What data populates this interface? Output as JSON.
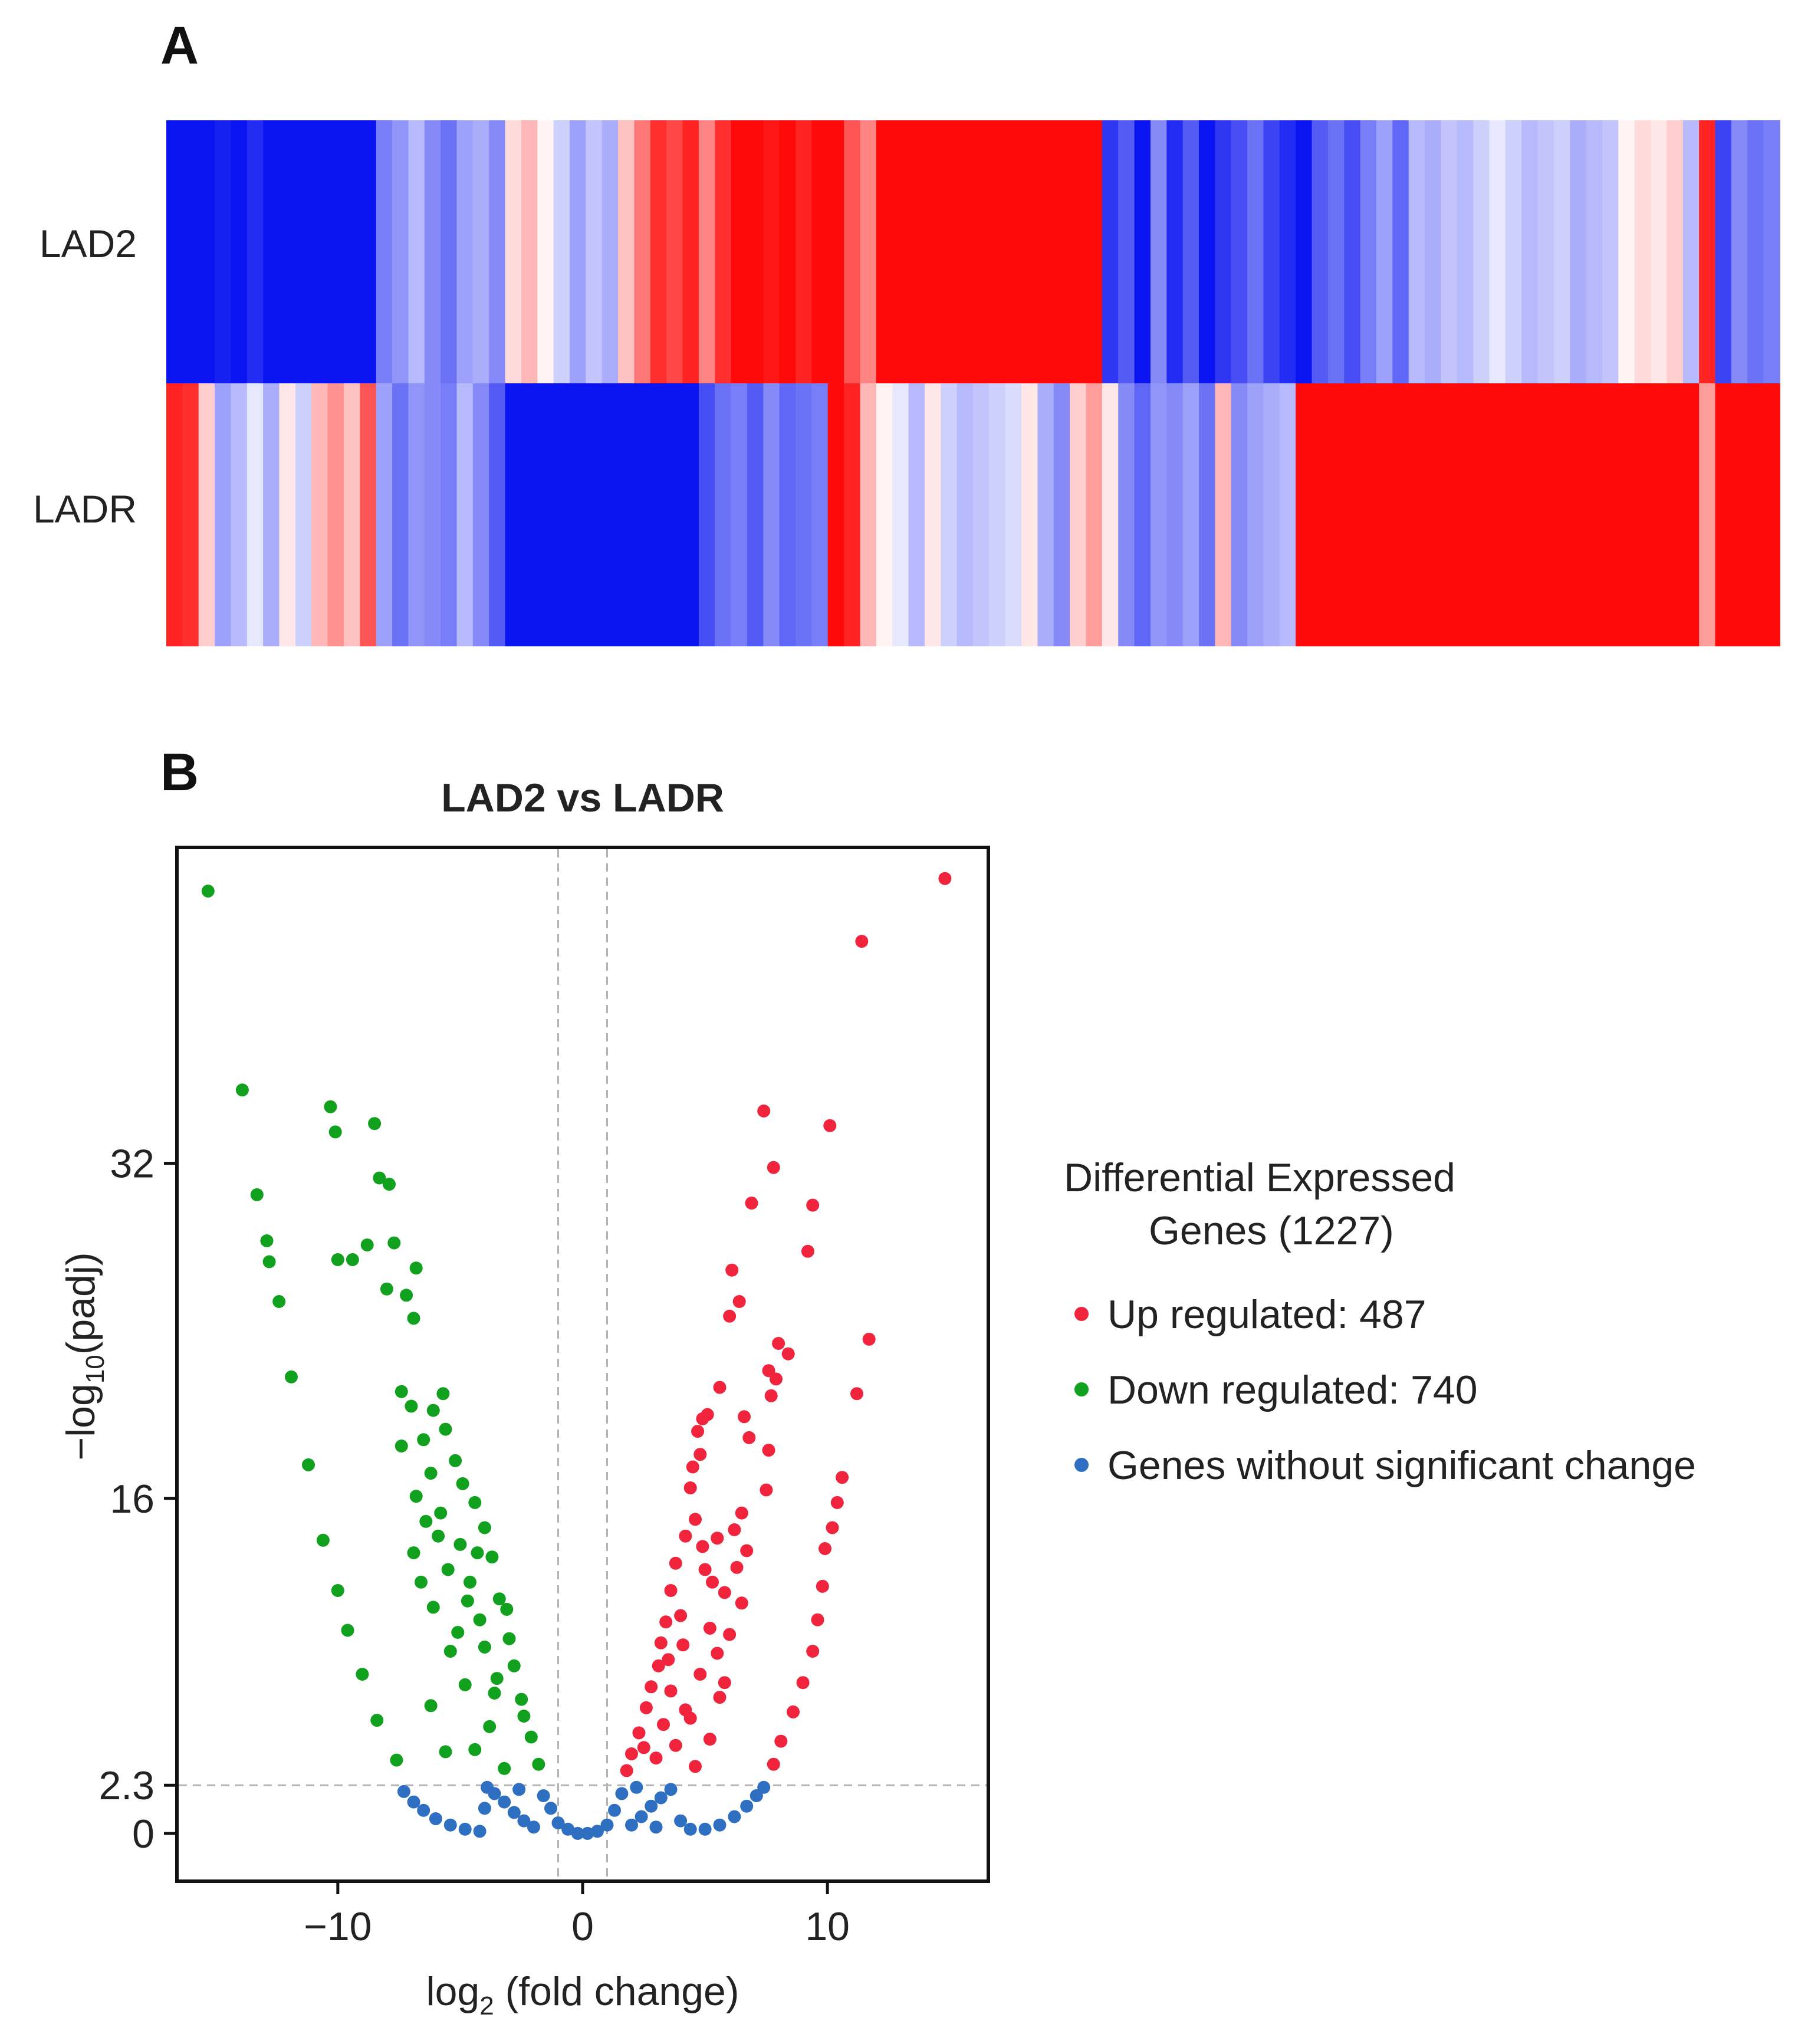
{
  "panels": {
    "a_label": "A",
    "b_label": "B"
  },
  "chart_data": [
    {
      "type": "heatmap",
      "rows": [
        "LAD2",
        "LADR"
      ],
      "color_scale": {
        "low": "#0a14f0",
        "mid": "#ffffff",
        "high": "#ff0a0a"
      },
      "value_range": [
        -1,
        1
      ],
      "columns": 100,
      "matrix": [
        [
          -1,
          -1,
          -1,
          -0.95,
          -1,
          -0.9,
          -1,
          -1,
          -1,
          -1,
          -1,
          -1,
          -1,
          -0.55,
          -0.45,
          -0.3,
          -0.5,
          -0.6,
          -0.4,
          -0.35,
          -0.5,
          0.15,
          0.3,
          0.05,
          -0.2,
          -0.4,
          -0.25,
          -0.35,
          0.25,
          0.55,
          0.85,
          0.75,
          0.9,
          0.5,
          0.85,
          1,
          1,
          0.95,
          1,
          0.9,
          1,
          1,
          0.7,
          0.5,
          1,
          1,
          1,
          1,
          1,
          1,
          1,
          1,
          1,
          1,
          1,
          1,
          1,
          1,
          -0.85,
          -0.7,
          -1,
          -0.5,
          -0.9,
          -0.7,
          -1,
          -0.85,
          -0.75,
          -0.6,
          -0.8,
          -0.9,
          -1,
          -0.7,
          -0.6,
          -0.75,
          -0.55,
          -0.4,
          -0.65,
          -0.3,
          -0.35,
          -0.25,
          -0.3,
          -0.2,
          -0.1,
          -0.2,
          -0.3,
          -0.25,
          -0.2,
          -0.35,
          -0.3,
          -0.25,
          0.05,
          0.15,
          0.1,
          0.2,
          -0.3,
          0.9,
          -0.8,
          -0.5,
          -0.6,
          -0.55
        ],
        [
          0.9,
          0.85,
          0.2,
          -0.4,
          -0.3,
          -0.1,
          -0.35,
          0.1,
          -0.2,
          0.3,
          0.45,
          0.25,
          0.7,
          -0.4,
          -0.6,
          -0.45,
          -0.5,
          -0.55,
          -0.3,
          -0.5,
          -0.7,
          -1,
          -1,
          -1,
          -1,
          -1,
          -1,
          -1,
          -1,
          -1,
          -1,
          -1,
          -1,
          -0.75,
          -0.6,
          -0.55,
          -0.7,
          -0.5,
          -0.65,
          -0.6,
          -0.55,
          1,
          0.9,
          0.3,
          0.05,
          -0.1,
          -0.3,
          0.1,
          -0.2,
          -0.3,
          -0.25,
          -0.2,
          -0.15,
          0.1,
          -0.35,
          -0.5,
          0.2,
          0.4,
          0.1,
          -0.5,
          -0.65,
          -0.45,
          -0.5,
          -0.4,
          -0.6,
          0.3,
          -0.5,
          -0.4,
          -0.35,
          -0.3,
          1,
          1,
          1,
          1,
          1,
          1,
          1,
          1,
          1,
          1,
          1,
          1,
          1,
          1,
          1,
          1,
          1,
          1,
          1,
          1,
          1,
          1,
          1,
          1,
          1,
          0.4,
          1,
          1,
          1,
          1
        ]
      ]
    },
    {
      "type": "scatter",
      "title": "LAD2 vs LADR",
      "xlabel_main": "log",
      "xlabel_sub": "2",
      "xlabel_rest": " (fold change)",
      "ylabel_pre": "−log",
      "ylabel_sub": "10",
      "ylabel_rest": "(padj)",
      "xlim": [
        -16.5,
        16.5
      ],
      "ylim": [
        -2.2,
        47
      ],
      "x_ticks": [
        -10,
        0,
        10
      ],
      "x_tick_labels": [
        "−10",
        "0",
        "10"
      ],
      "y_ticks": [
        0,
        2.3,
        16,
        32
      ],
      "y_tick_labels": [
        "0",
        "2.3",
        "16",
        "32"
      ],
      "threshold_lines": {
        "x": [
          -1,
          1
        ],
        "y": 2.3
      },
      "colors": {
        "up": "#f0243c",
        "down": "#11a11f",
        "none": "#2f6fc1"
      },
      "legend": {
        "title_line1": "Differential Expressed",
        "title_line2": "Genes (1227)",
        "items": [
          {
            "key": "up",
            "label": "Up regulated: 487"
          },
          {
            "key": "down",
            "label": "Down regulated: 740"
          },
          {
            "key": "none",
            "label": "Genes without significant change"
          }
        ]
      },
      "series": [
        {
          "name": "Up regulated",
          "key": "up",
          "points": [
            [
              14.8,
              45.6
            ],
            [
              11.4,
              42.6
            ],
            [
              7.4,
              34.5
            ],
            [
              10.1,
              33.8
            ],
            [
              7.8,
              31.8
            ],
            [
              6.9,
              30.1
            ],
            [
              9.4,
              30
            ],
            [
              9.2,
              27.8
            ],
            [
              6.1,
              26.9
            ],
            [
              6.4,
              25.4
            ],
            [
              6.0,
              24.7
            ],
            [
              11.7,
              23.6
            ],
            [
              8.0,
              23.4
            ],
            [
              8.4,
              22.9
            ],
            [
              7.6,
              22.1
            ],
            [
              7.9,
              21.7
            ],
            [
              5.6,
              21.3
            ],
            [
              7.7,
              20.9
            ],
            [
              11.2,
              21.0
            ],
            [
              5.1,
              20.0
            ],
            [
              4.9,
              19.8
            ],
            [
              6.6,
              19.9
            ],
            [
              4.7,
              19.2
            ],
            [
              6.8,
              18.9
            ],
            [
              4.8,
              18.1
            ],
            [
              7.6,
              18.3
            ],
            [
              4.5,
              17.5
            ],
            [
              10.6,
              17.0
            ],
            [
              7.5,
              16.4
            ],
            [
              4.4,
              16.5
            ],
            [
              10.4,
              15.8
            ],
            [
              6.5,
              15.3
            ],
            [
              4.6,
              15.0
            ],
            [
              6.2,
              14.5
            ],
            [
              10.2,
              14.6
            ],
            [
              5.5,
              14.1
            ],
            [
              4.2,
              14.2
            ],
            [
              6.7,
              13.5
            ],
            [
              9.9,
              13.6
            ],
            [
              3.8,
              12.9
            ],
            [
              6.3,
              12.7
            ],
            [
              5.0,
              12.6
            ],
            [
              9.8,
              11.8
            ],
            [
              3.6,
              11.6
            ],
            [
              5.8,
              11.5
            ],
            [
              6.5,
              11.0
            ],
            [
              4.0,
              10.4
            ],
            [
              9.6,
              10.2
            ],
            [
              3.4,
              10.1
            ],
            [
              5.2,
              9.8
            ],
            [
              6.0,
              9.5
            ],
            [
              3.2,
              9.1
            ],
            [
              9.4,
              8.7
            ],
            [
              5.5,
              8.6
            ],
            [
              3.1,
              8.0
            ],
            [
              4.8,
              7.6
            ],
            [
              9.0,
              7.2
            ],
            [
              2.8,
              7.0
            ],
            [
              5.6,
              6.5
            ],
            [
              2.6,
              6.0
            ],
            [
              8.6,
              5.8
            ],
            [
              4.4,
              5.5
            ],
            [
              2.3,
              4.8
            ],
            [
              8.1,
              4.4
            ],
            [
              3.8,
              4.2
            ],
            [
              5.2,
              4.5
            ],
            [
              2.0,
              3.8
            ],
            [
              7.8,
              3.3
            ],
            [
              4.6,
              3.2
            ],
            [
              1.8,
              3.0
            ],
            [
              3.0,
              3.6
            ],
            [
              4.2,
              5.9
            ],
            [
              3.6,
              6.8
            ],
            [
              4.9,
              13.7
            ],
            [
              5.3,
              12.0
            ],
            [
              3.5,
              8.3
            ],
            [
              4.1,
              9.0
            ],
            [
              5.8,
              7.2
            ],
            [
              2.5,
              4.1
            ],
            [
              3.3,
              5.2
            ]
          ]
        },
        {
          "name": "Down regulated",
          "key": "down",
          "points": [
            [
              -15.3,
              45.0
            ],
            [
              -13.9,
              35.5
            ],
            [
              -10.3,
              34.7
            ],
            [
              -8.5,
              33.9
            ],
            [
              -10.1,
              33.5
            ],
            [
              -13.3,
              30.5
            ],
            [
              -12.9,
              28.3
            ],
            [
              -8.3,
              31.3
            ],
            [
              -7.9,
              31.0
            ],
            [
              -8.8,
              28.1
            ],
            [
              -10.0,
              27.4
            ],
            [
              -9.4,
              27.4
            ],
            [
              -7.7,
              28.2
            ],
            [
              -12.8,
              27.3
            ],
            [
              -6.8,
              27.0
            ],
            [
              -12.4,
              25.4
            ],
            [
              -8.0,
              26.0
            ],
            [
              -7.2,
              25.7
            ],
            [
              -6.9,
              24.6
            ],
            [
              -11.9,
              21.8
            ],
            [
              -7.4,
              21.1
            ],
            [
              -5.7,
              21.0
            ],
            [
              -7.0,
              20.4
            ],
            [
              -6.1,
              20.2
            ],
            [
              -5.6,
              19.3
            ],
            [
              -6.5,
              18.8
            ],
            [
              -7.4,
              18.5
            ],
            [
              -5.2,
              17.8
            ],
            [
              -6.2,
              17.2
            ],
            [
              -4.9,
              16.7
            ],
            [
              -11.2,
              17.6
            ],
            [
              -6.8,
              16.1
            ],
            [
              -4.4,
              15.8
            ],
            [
              -5.8,
              15.3
            ],
            [
              -6.4,
              14.9
            ],
            [
              -4.0,
              14.6
            ],
            [
              -10.6,
              14.0
            ],
            [
              -5.0,
              13.8
            ],
            [
              -6.9,
              13.4
            ],
            [
              -3.7,
              13.2
            ],
            [
              -5.5,
              12.6
            ],
            [
              -4.6,
              12.0
            ],
            [
              -10.0,
              11.6
            ],
            [
              -3.4,
              11.2
            ],
            [
              -6.1,
              10.8
            ],
            [
              -4.2,
              10.2
            ],
            [
              -9.6,
              9.7
            ],
            [
              -3.0,
              9.3
            ],
            [
              -5.4,
              8.7
            ],
            [
              -2.8,
              8.0
            ],
            [
              -9.0,
              7.6
            ],
            [
              -4.8,
              7.1
            ],
            [
              -2.5,
              6.4
            ],
            [
              -6.2,
              6.1
            ],
            [
              -8.4,
              5.4
            ],
            [
              -3.8,
              5.1
            ],
            [
              -2.1,
              4.6
            ],
            [
              -7.6,
              3.5
            ],
            [
              -4.4,
              4.0
            ],
            [
              -1.8,
              3.3
            ],
            [
              -5.6,
              3.9
            ],
            [
              -3.2,
              3.1
            ],
            [
              -2.4,
              5.6
            ],
            [
              -3.5,
              7.4
            ],
            [
              -4.0,
              8.9
            ],
            [
              -3.1,
              10.7
            ],
            [
              -5.1,
              9.6
            ],
            [
              -4.7,
              11.1
            ],
            [
              -6.6,
              12.0
            ],
            [
              -3.6,
              6.7
            ],
            [
              -5.9,
              14.2
            ],
            [
              -4.3,
              13.4
            ]
          ]
        },
        {
          "name": "Genes without significant change",
          "key": "none",
          "points": [
            [
              -7.3,
              2.0
            ],
            [
              -6.9,
              1.5
            ],
            [
              -6.5,
              1.1
            ],
            [
              -6.0,
              0.7
            ],
            [
              -5.4,
              0.4
            ],
            [
              -4.8,
              0.2
            ],
            [
              -4.2,
              0.1
            ],
            [
              -3.6,
              1.9
            ],
            [
              -3.2,
              1.5
            ],
            [
              -2.8,
              1.0
            ],
            [
              -2.4,
              0.6
            ],
            [
              -2.0,
              0.3
            ],
            [
              -1.6,
              1.8
            ],
            [
              -1.3,
              1.2
            ],
            [
              -3.9,
              2.2
            ],
            [
              -4.0,
              1.2
            ],
            [
              -1.0,
              0.5
            ],
            [
              -0.6,
              0.2
            ],
            [
              -0.2,
              0.0
            ],
            [
              0.2,
              0.0
            ],
            [
              0.6,
              0.1
            ],
            [
              1.0,
              0.4
            ],
            [
              1.3,
              1.1
            ],
            [
              1.6,
              1.9
            ],
            [
              2.0,
              0.4
            ],
            [
              2.4,
              0.8
            ],
            [
              2.8,
              1.3
            ],
            [
              3.2,
              1.7
            ],
            [
              3.6,
              2.1
            ],
            [
              4.0,
              0.6
            ],
            [
              4.4,
              0.2
            ],
            [
              5.0,
              0.2
            ],
            [
              5.6,
              0.4
            ],
            [
              6.2,
              0.8
            ],
            [
              6.7,
              1.3
            ],
            [
              7.1,
              1.8
            ],
            [
              7.4,
              2.2
            ],
            [
              2.2,
              2.2
            ],
            [
              3.0,
              0.3
            ],
            [
              -2.6,
              2.1
            ]
          ]
        }
      ]
    }
  ]
}
